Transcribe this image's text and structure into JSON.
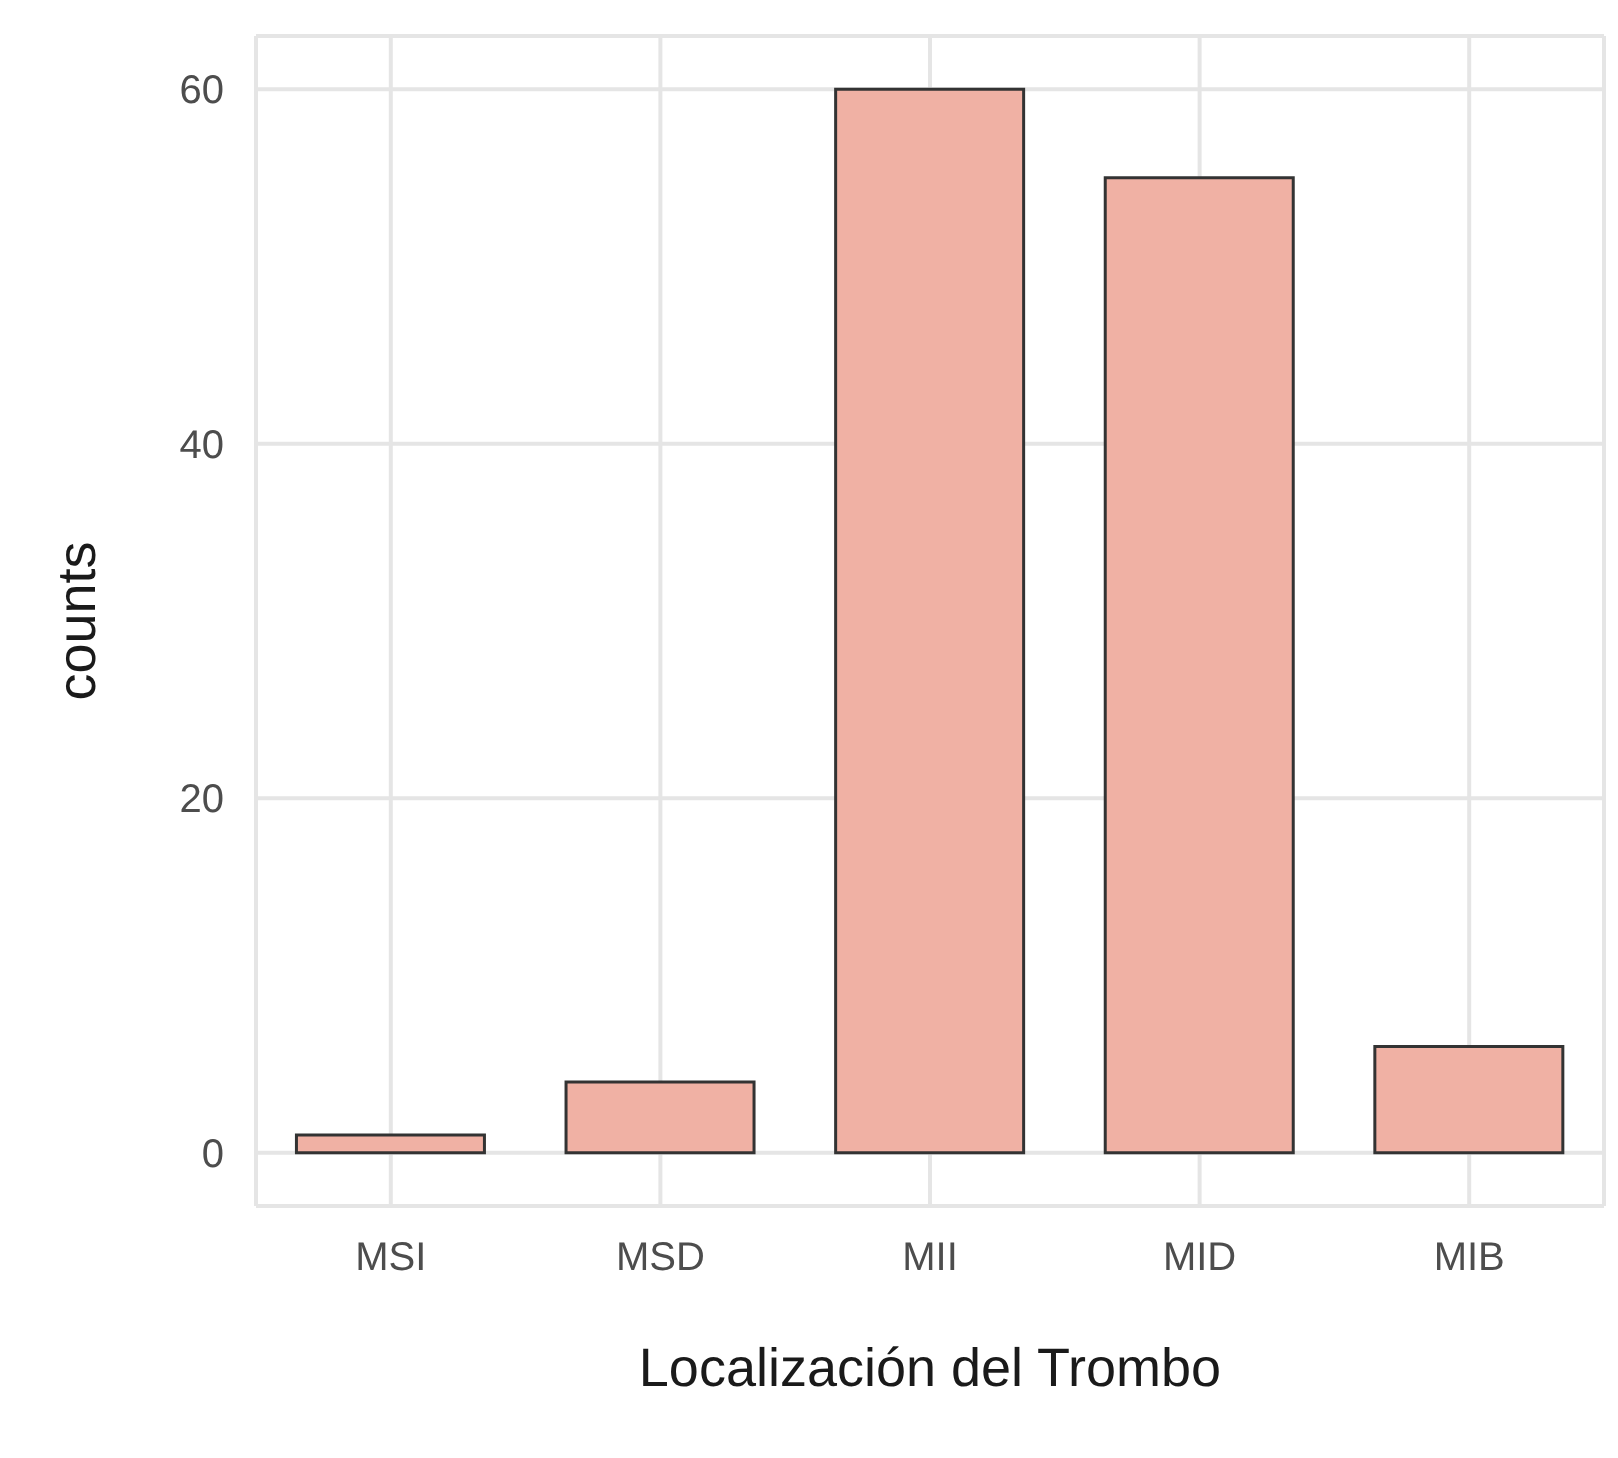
{
  "chart_data": {
    "type": "bar",
    "xlabel": "Localización del Trombo",
    "ylabel": "counts",
    "categories": [
      "MSI",
      "MSD",
      "MII",
      "MID",
      "MIB"
    ],
    "values": [
      1,
      4,
      60,
      55,
      6
    ],
    "color": "#f0b1a4",
    "ylim": [
      -3,
      63
    ],
    "yticks": [
      0,
      20,
      40,
      60
    ],
    "grid": true
  }
}
